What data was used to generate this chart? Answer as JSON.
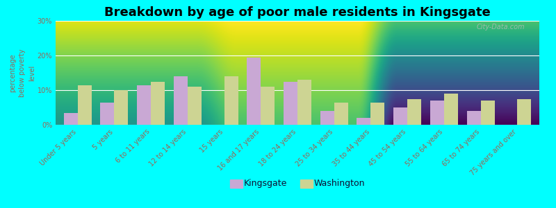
{
  "title": "Breakdown by age of poor male residents in Kingsgate",
  "ylabel": "percentage\nbelow poverty\nlevel",
  "categories": [
    "Under 5 years",
    "5 years",
    "6 to 11 years",
    "12 to 14 years",
    "15 years",
    "16 and 17 years",
    "18 to 24 years",
    "25 to 34 years",
    "35 to 44 years",
    "45 to 54 years",
    "55 to 64 years",
    "65 to 74 years",
    "75 years and over"
  ],
  "kingsgate": [
    3.5,
    6.5,
    11.5,
    14.0,
    0.0,
    19.5,
    12.5,
    4.0,
    2.0,
    5.0,
    7.0,
    4.0,
    0.0
  ],
  "washington": [
    11.5,
    10.0,
    12.5,
    11.0,
    14.0,
    11.0,
    13.0,
    6.5,
    6.5,
    7.5,
    9.0,
    7.0,
    7.5
  ],
  "kingsgate_color": "#c9a8d4",
  "washington_color": "#cdd493",
  "background_color": "#00ffff",
  "plot_bg_color": "#eef2dc",
  "ylim": [
    0,
    30
  ],
  "yticks": [
    0,
    10,
    20,
    30
  ],
  "ytick_labels": [
    "0%",
    "10%",
    "20%",
    "30%"
  ],
  "bar_width": 0.38,
  "title_fontsize": 13,
  "legend_fontsize": 9,
  "tick_fontsize": 7,
  "axis_color": "#996655",
  "grid_color": "#ffffff",
  "watermark": "City-Data.com"
}
